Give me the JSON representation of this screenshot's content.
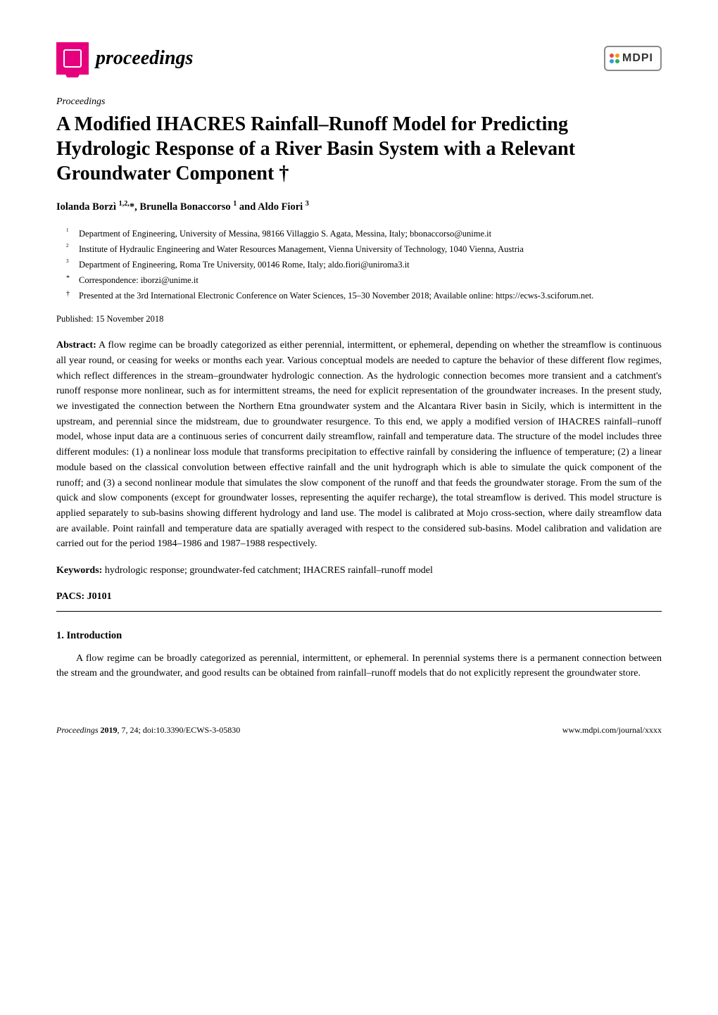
{
  "logo": {
    "left_text": "proceedings",
    "right_text": "MDPI",
    "square_color": "#e6007e",
    "dot_colors": [
      "#e84c3d",
      "#f39c12",
      "#3498db",
      "#27ae60"
    ]
  },
  "article_type": "Proceedings",
  "title": "A Modified IHACRES Rainfall–Runoff Model for Predicting Hydrologic Response of a River Basin System with a Relevant Groundwater Component †",
  "authors": "Iolanda Borzì 1,2,*, Brunella Bonaccorso 1 and Aldo Fiori 3",
  "affiliations": [
    {
      "marker": "1",
      "text": "Department of Engineering, University of Messina, 98166 Villaggio S. Agata, Messina, Italy; bbonaccorso@unime.it"
    },
    {
      "marker": "2",
      "text": "Institute of Hydraulic Engineering and Water Resources Management, Vienna University of Technology, 1040 Vienna, Austria"
    },
    {
      "marker": "3",
      "text": "Department of Engineering, Roma Tre University, 00146 Rome, Italy; aldo.fiori@uniroma3.it"
    },
    {
      "marker": "*",
      "text": "Correspondence: iborzi@unime.it"
    },
    {
      "marker": "†",
      "text": "Presented at the 3rd International Electronic Conference on Water Sciences, 15–30 November 2018; Available online: https://ecws-3.sciforum.net."
    }
  ],
  "pub_date": "Published: 15 November 2018",
  "abstract_label": "Abstract:",
  "abstract_text": " A flow regime can be broadly categorized as either perennial, intermittent, or ephemeral, depending on whether the streamflow is continuous all year round, or ceasing for weeks or months each year. Various conceptual models are needed to capture the behavior of these different flow regimes, which reflect differences in the stream–groundwater hydrologic connection. As the hydrologic connection becomes more transient and a catchment's runoff response more nonlinear, such as for intermittent streams, the need for explicit representation of the groundwater increases. In the present study, we investigated the connection between the Northern Etna groundwater system and the Alcantara River basin in Sicily, which is intermittent in the upstream, and perennial since the midstream, due to groundwater resurgence. To this end, we apply a modified version of IHACRES rainfall–runoff model, whose input data are a continuous series of concurrent daily streamflow, rainfall and temperature data. The structure of the model includes three different modules: (1) a nonlinear loss module that transforms precipitation to effective rainfall by considering the influence of temperature; (2) a linear module based on the classical convolution between effective rainfall and the unit hydrograph which is able to simulate the quick component of the runoff; and (3) a second nonlinear module that simulates the slow component of the runoff and that feeds the groundwater storage. From the sum of the quick and slow components (except for groundwater losses, representing the aquifer recharge), the total streamflow is derived. This model structure is applied separately to sub-basins showing different hydrology and land use. The model is calibrated at Mojo cross-section, where daily streamflow data are available. Point rainfall and temperature data are spatially averaged with respect to the considered sub-basins. Model calibration and validation are carried out for the period 1984–1986 and 1987–1988 respectively.",
  "keywords_label": "Keywords:",
  "keywords_text": " hydrologic response; groundwater-fed catchment; IHACRES rainfall–runoff model",
  "pacs": "PACS: J0101",
  "section_1_title": "1. Introduction",
  "section_1_text": "A flow regime can be broadly categorized as perennial, intermittent, or ephemeral. In perennial systems there is a permanent connection between the stream and the groundwater, and good results can be obtained from rainfall–runoff models that do not explicitly represent the groundwater store.",
  "footer": {
    "left_italic": "Proceedings ",
    "left_bold": "2019",
    "left_rest": ", 7, 24; doi:10.3390/ECWS-3-05830",
    "right": "www.mdpi.com/journal/xxxx"
  },
  "colors": {
    "text": "#000000",
    "background": "#ffffff",
    "accent": "#e6007e"
  }
}
